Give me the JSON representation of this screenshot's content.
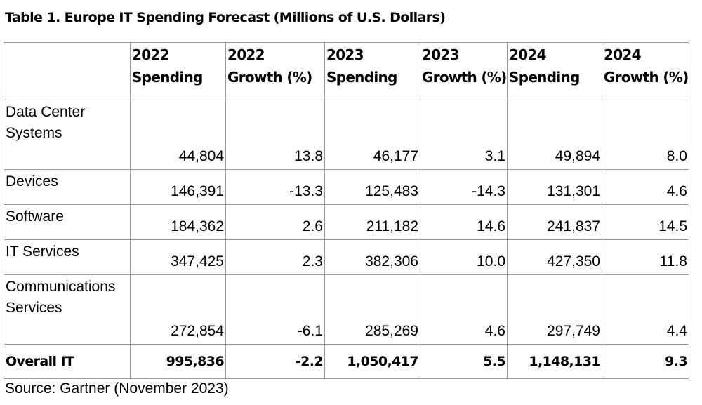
{
  "title": "Table 1. Europe IT Spending Forecast (Millions of U.S. Dollars)",
  "headers": [
    {
      "line1": "",
      "line2": ""
    },
    {
      "line1": "2022",
      "line2": "Spending"
    },
    {
      "line1": "2022",
      "line2": "Growth (%)"
    },
    {
      "line1": "2023",
      "line2": "Spending"
    },
    {
      "line1": "2023",
      "line2": "Growth (%)"
    },
    {
      "line1": "2024",
      "line2": "Spending"
    },
    {
      "line1": "2024",
      "line2": "Growth (%)"
    }
  ],
  "rows": [
    {
      "label_line1": "Data Center",
      "label_line2": "Systems",
      "values": [
        "44,804",
        "13.8",
        "46,177",
        "3.1",
        "49,894",
        "8.0"
      ]
    },
    {
      "label_line1": "Devices",
      "label_line2": "",
      "values": [
        "146,391",
        "-13.3",
        "125,483",
        "-14.3",
        "131,301",
        "4.6"
      ]
    },
    {
      "label_line1": "Software",
      "label_line2": "",
      "values": [
        "184,362",
        "2.6",
        "211,182",
        "14.6",
        "241,837",
        "14.5"
      ]
    },
    {
      "label_line1": "IT Services",
      "label_line2": "",
      "values": [
        "347,425",
        "2.3",
        "382,306",
        "10.0",
        "427,350",
        "11.8"
      ]
    },
    {
      "label_line1": "Communications",
      "label_line2": "Services",
      "values": [
        "272,854",
        "-6.1",
        "285,269",
        "4.6",
        "297,749",
        "4.4"
      ]
    },
    {
      "label_line1": "Overall IT",
      "label_line2": "",
      "values": [
        "995,836",
        "-2.2",
        "1,050,417",
        "5.5",
        "1,148,131",
        "9.3"
      ]
    }
  ],
  "source": "Source: Gartner (November 2023)"
}
